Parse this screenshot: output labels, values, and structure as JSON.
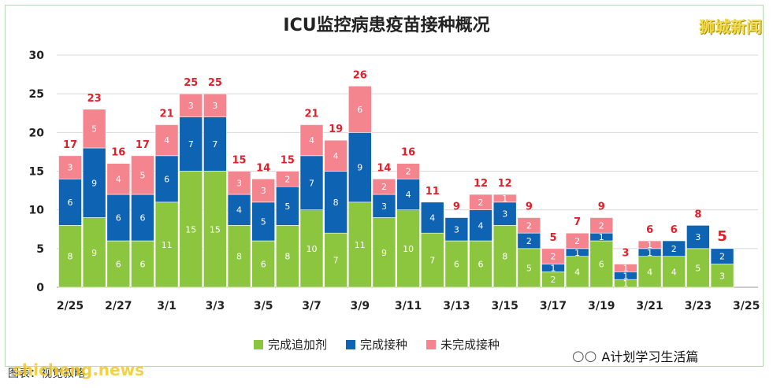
{
  "header": {
    "title": "ICU监控病患疫苗接种概况",
    "brand": "狮城新闻"
  },
  "footer": {
    "wechat_text": "A计划学习生活篇",
    "source_label": "图表：视觉叙略",
    "watermark": "shicheng.news"
  },
  "colors": {
    "booster": "#8cc63e",
    "vaccinated": "#0e63b3",
    "unvaccinated": "#f4858e",
    "total_label": "#e0202a"
  },
  "chart_data": {
    "type": "bar",
    "stacked": true,
    "title": "ICU监控病患疫苗接种概况",
    "ylim": [
      0,
      30
    ],
    "yticks": [
      0,
      5,
      10,
      15,
      20,
      25,
      30
    ],
    "categories": [
      "2/25",
      "2/26",
      "2/27",
      "2/28",
      "3/1",
      "3/2",
      "3/3",
      "3/4",
      "3/5",
      "3/6",
      "3/7",
      "3/8",
      "3/9",
      "3/10",
      "3/11",
      "3/12",
      "3/13",
      "3/14",
      "3/15",
      "3/16",
      "3/17",
      "3/18",
      "3/19",
      "3/20",
      "3/21",
      "3/22",
      "3/23",
      "3/24"
    ],
    "xtick_labels": [
      "2/25",
      "2/27",
      "3/1",
      "3/3",
      "3/5",
      "3/7",
      "3/9",
      "3/11",
      "3/13",
      "3/15",
      "3/17",
      "3/19",
      "3/21",
      "3/23",
      "3/25"
    ],
    "series": [
      {
        "name": "完成追加剂",
        "values": [
          8,
          9,
          6,
          6,
          11,
          15,
          15,
          8,
          6,
          8,
          10,
          7,
          11,
          9,
          10,
          7,
          6,
          6,
          8,
          5,
          2,
          4,
          6,
          1,
          4,
          4,
          5,
          3
        ]
      },
      {
        "name": "完成接种",
        "values": [
          6,
          9,
          6,
          6,
          6,
          7,
          7,
          4,
          5,
          5,
          7,
          8,
          9,
          3,
          4,
          4,
          3,
          4,
          3,
          2,
          1,
          1,
          1,
          1,
          1,
          2,
          3,
          2
        ]
      },
      {
        "name": "未完成接种",
        "values": [
          3,
          5,
          4,
          5,
          4,
          3,
          3,
          3,
          3,
          2,
          4,
          4,
          6,
          2,
          2,
          0,
          0,
          2,
          1,
          2,
          2,
          2,
          2,
          1,
          1,
          0,
          0,
          0
        ]
      }
    ],
    "totals": [
      17,
      23,
      16,
      17,
      21,
      25,
      25,
      15,
      14,
      15,
      21,
      19,
      26,
      14,
      16,
      11,
      9,
      12,
      12,
      9,
      5,
      7,
      9,
      3,
      6,
      6,
      8,
      5
    ],
    "legend": "bottom-center"
  }
}
